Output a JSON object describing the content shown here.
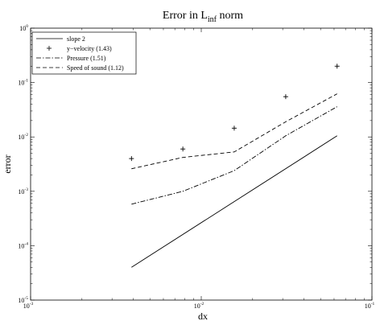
{
  "chart_data": {
    "type": "line",
    "title": {
      "prefix": "Error in L",
      "subscript": "inf",
      "suffix": " norm"
    },
    "xlabel": "dx",
    "ylabel": "error",
    "xscale": "log",
    "yscale": "log",
    "xlim": [
      0.001,
      0.1
    ],
    "ylim": [
      1e-05,
      1
    ],
    "x_ticks": [
      {
        "value": 0.001,
        "base": "10",
        "exp": "-3"
      },
      {
        "value": 0.01,
        "base": "10",
        "exp": "-2"
      },
      {
        "value": 0.1,
        "base": "10",
        "exp": "-1"
      }
    ],
    "y_ticks": [
      {
        "value": 1e-05,
        "base": "10",
        "exp": "-5"
      },
      {
        "value": 0.0001,
        "base": "10",
        "exp": "-4"
      },
      {
        "value": 0.001,
        "base": "10",
        "exp": "-3"
      },
      {
        "value": 0.01,
        "base": "10",
        "exp": "-2"
      },
      {
        "value": 0.1,
        "base": "10",
        "exp": "-1"
      },
      {
        "value": 1,
        "base": "10",
        "exp": "0"
      }
    ],
    "grid": false,
    "legend_position": "top-left",
    "series": [
      {
        "name": "slope 2",
        "style": "solid",
        "x": [
          0.0039,
          0.0625
        ],
        "y": [
          4e-05,
          0.0105
        ]
      },
      {
        "name": "y−velocity (1.43)",
        "style": "plus",
        "x": [
          0.0039,
          0.0078,
          0.0156,
          0.03125,
          0.0625
        ],
        "y": [
          0.004,
          0.006,
          0.0145,
          0.055,
          0.2
        ]
      },
      {
        "name": "Pressure (1.51)",
        "style": "dashdot",
        "x": [
          0.0039,
          0.0078,
          0.0156,
          0.03125,
          0.0625
        ],
        "y": [
          0.00058,
          0.001,
          0.0024,
          0.0105,
          0.036
        ]
      },
      {
        "name": "Speed of sound (1.12)",
        "style": "dashed",
        "x": [
          0.0039,
          0.0078,
          0.0156,
          0.03125,
          0.0625
        ],
        "y": [
          0.0026,
          0.0042,
          0.0053,
          0.019,
          0.062
        ]
      }
    ]
  }
}
